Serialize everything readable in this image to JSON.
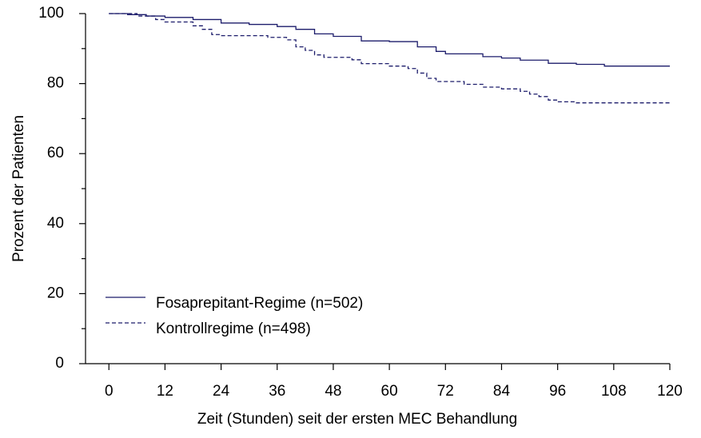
{
  "chart_data": {
    "type": "step",
    "xlabel": "Zeit (Stunden) seit der ersten MEC Behandlung",
    "ylabel": "Prozent der Patienten",
    "xlim": [
      -5,
      120
    ],
    "xticks": [
      0,
      12,
      24,
      36,
      48,
      60,
      72,
      84,
      96,
      108,
      120
    ],
    "ylim": [
      0,
      100
    ],
    "yticks": [
      0,
      20,
      40,
      60,
      80,
      100
    ],
    "yminorticks": [
      10,
      30,
      50,
      70,
      90
    ],
    "legend": "lower left",
    "series": [
      {
        "name": "Fosaprepitant-Regime (n=502)",
        "color": "#1c1c6b",
        "dash": "solid",
        "x": [
          0,
          4,
          8,
          12,
          18,
          24,
          30,
          36,
          40,
          44,
          48,
          54,
          60,
          66,
          70,
          72,
          80,
          84,
          88,
          94,
          100,
          106,
          120
        ],
        "values": [
          100,
          99.7,
          99.3,
          98.9,
          98.3,
          97.3,
          96.9,
          96.3,
          95.5,
          94.2,
          93.5,
          92.2,
          92,
          90.5,
          89.2,
          88.5,
          87.7,
          87.3,
          86.7,
          85.8,
          85.5,
          85,
          85
        ]
      },
      {
        "name": "Kontrollregime (n=498)",
        "color": "#1c1c6b",
        "dash": "dashed",
        "x": [
          0,
          6,
          10,
          12,
          18,
          20,
          22,
          24,
          34,
          38,
          40,
          42,
          44,
          46,
          52,
          54,
          60,
          64,
          66,
          68,
          70,
          76,
          80,
          84,
          88,
          90,
          92,
          94,
          96,
          100,
          120
        ],
        "values": [
          100,
          99.3,
          98.3,
          97.6,
          96.5,
          95.5,
          94,
          93.7,
          93.2,
          92.5,
          90.5,
          89.5,
          88.2,
          87.5,
          86.8,
          85.7,
          85,
          84.3,
          83,
          81.5,
          80.6,
          79.8,
          79,
          78.5,
          77.8,
          77,
          76.3,
          75.3,
          74.8,
          74.5,
          74.2
        ]
      }
    ]
  }
}
